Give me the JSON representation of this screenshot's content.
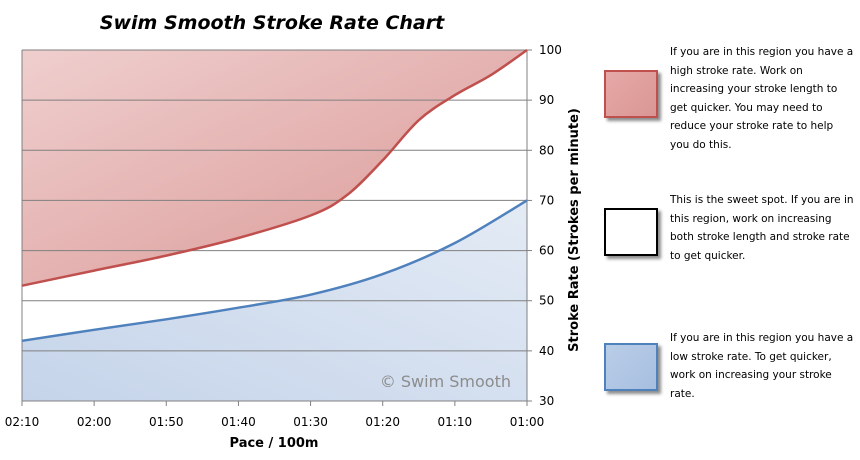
{
  "colors": {
    "high_fill_dark": "#d99694",
    "high_fill_light": "#efcfce",
    "high_line": "#c0504d",
    "low_fill_dark": "#c5d4ea",
    "low_fill_light": "#e4ebf5",
    "low_line": "#4f81bd",
    "grid": "#808080"
  },
  "chart_data": {
    "type": "area",
    "title": "Swim Smooth Stroke Rate Chart",
    "xlabel": "Pace / 100m",
    "ylabel": "Stroke Rate (Strokes per minute)",
    "x_tick_labels": [
      "02:10",
      "02:00",
      "01:50",
      "01:40",
      "01:30",
      "01:20",
      "01:10",
      "01:00"
    ],
    "x_tick_seconds": [
      130,
      120,
      110,
      100,
      90,
      80,
      70,
      60
    ],
    "xlim_seconds": [
      130,
      60
    ],
    "y_ticks": [
      30,
      40,
      50,
      60,
      70,
      80,
      90,
      100
    ],
    "ylim": [
      30,
      100
    ],
    "y_axis_side": "right",
    "grid": "horizontal",
    "watermark": "© Swim Smooth",
    "series": [
      {
        "key": "high_boundary",
        "x_seconds": [
          130,
          120,
          110,
          100,
          90,
          85,
          80,
          75,
          70,
          65,
          60
        ],
        "values": [
          53,
          56,
          59,
          62.5,
          67,
          71,
          78,
          86,
          91,
          95,
          100
        ]
      },
      {
        "key": "low_boundary",
        "x_seconds": [
          130,
          120,
          110,
          100,
          90,
          80,
          70,
          60
        ],
        "values": [
          42,
          44.2,
          46.3,
          48.6,
          51.2,
          55.3,
          61.5,
          70
        ]
      }
    ]
  },
  "legend": [
    {
      "key": "high",
      "text": "If you are in this region you have a high stroke rate. Work on increasing your stroke length to get quicker. You may need to reduce your stroke rate to help you do this."
    },
    {
      "key": "sweet",
      "text": "This is the sweet spot. If you are in this region, work on increasing both stroke length and stroke rate to get quicker."
    },
    {
      "key": "low",
      "text": "If you are in this region you have a low stroke rate. To get quicker, work on increasing your stroke rate."
    }
  ]
}
